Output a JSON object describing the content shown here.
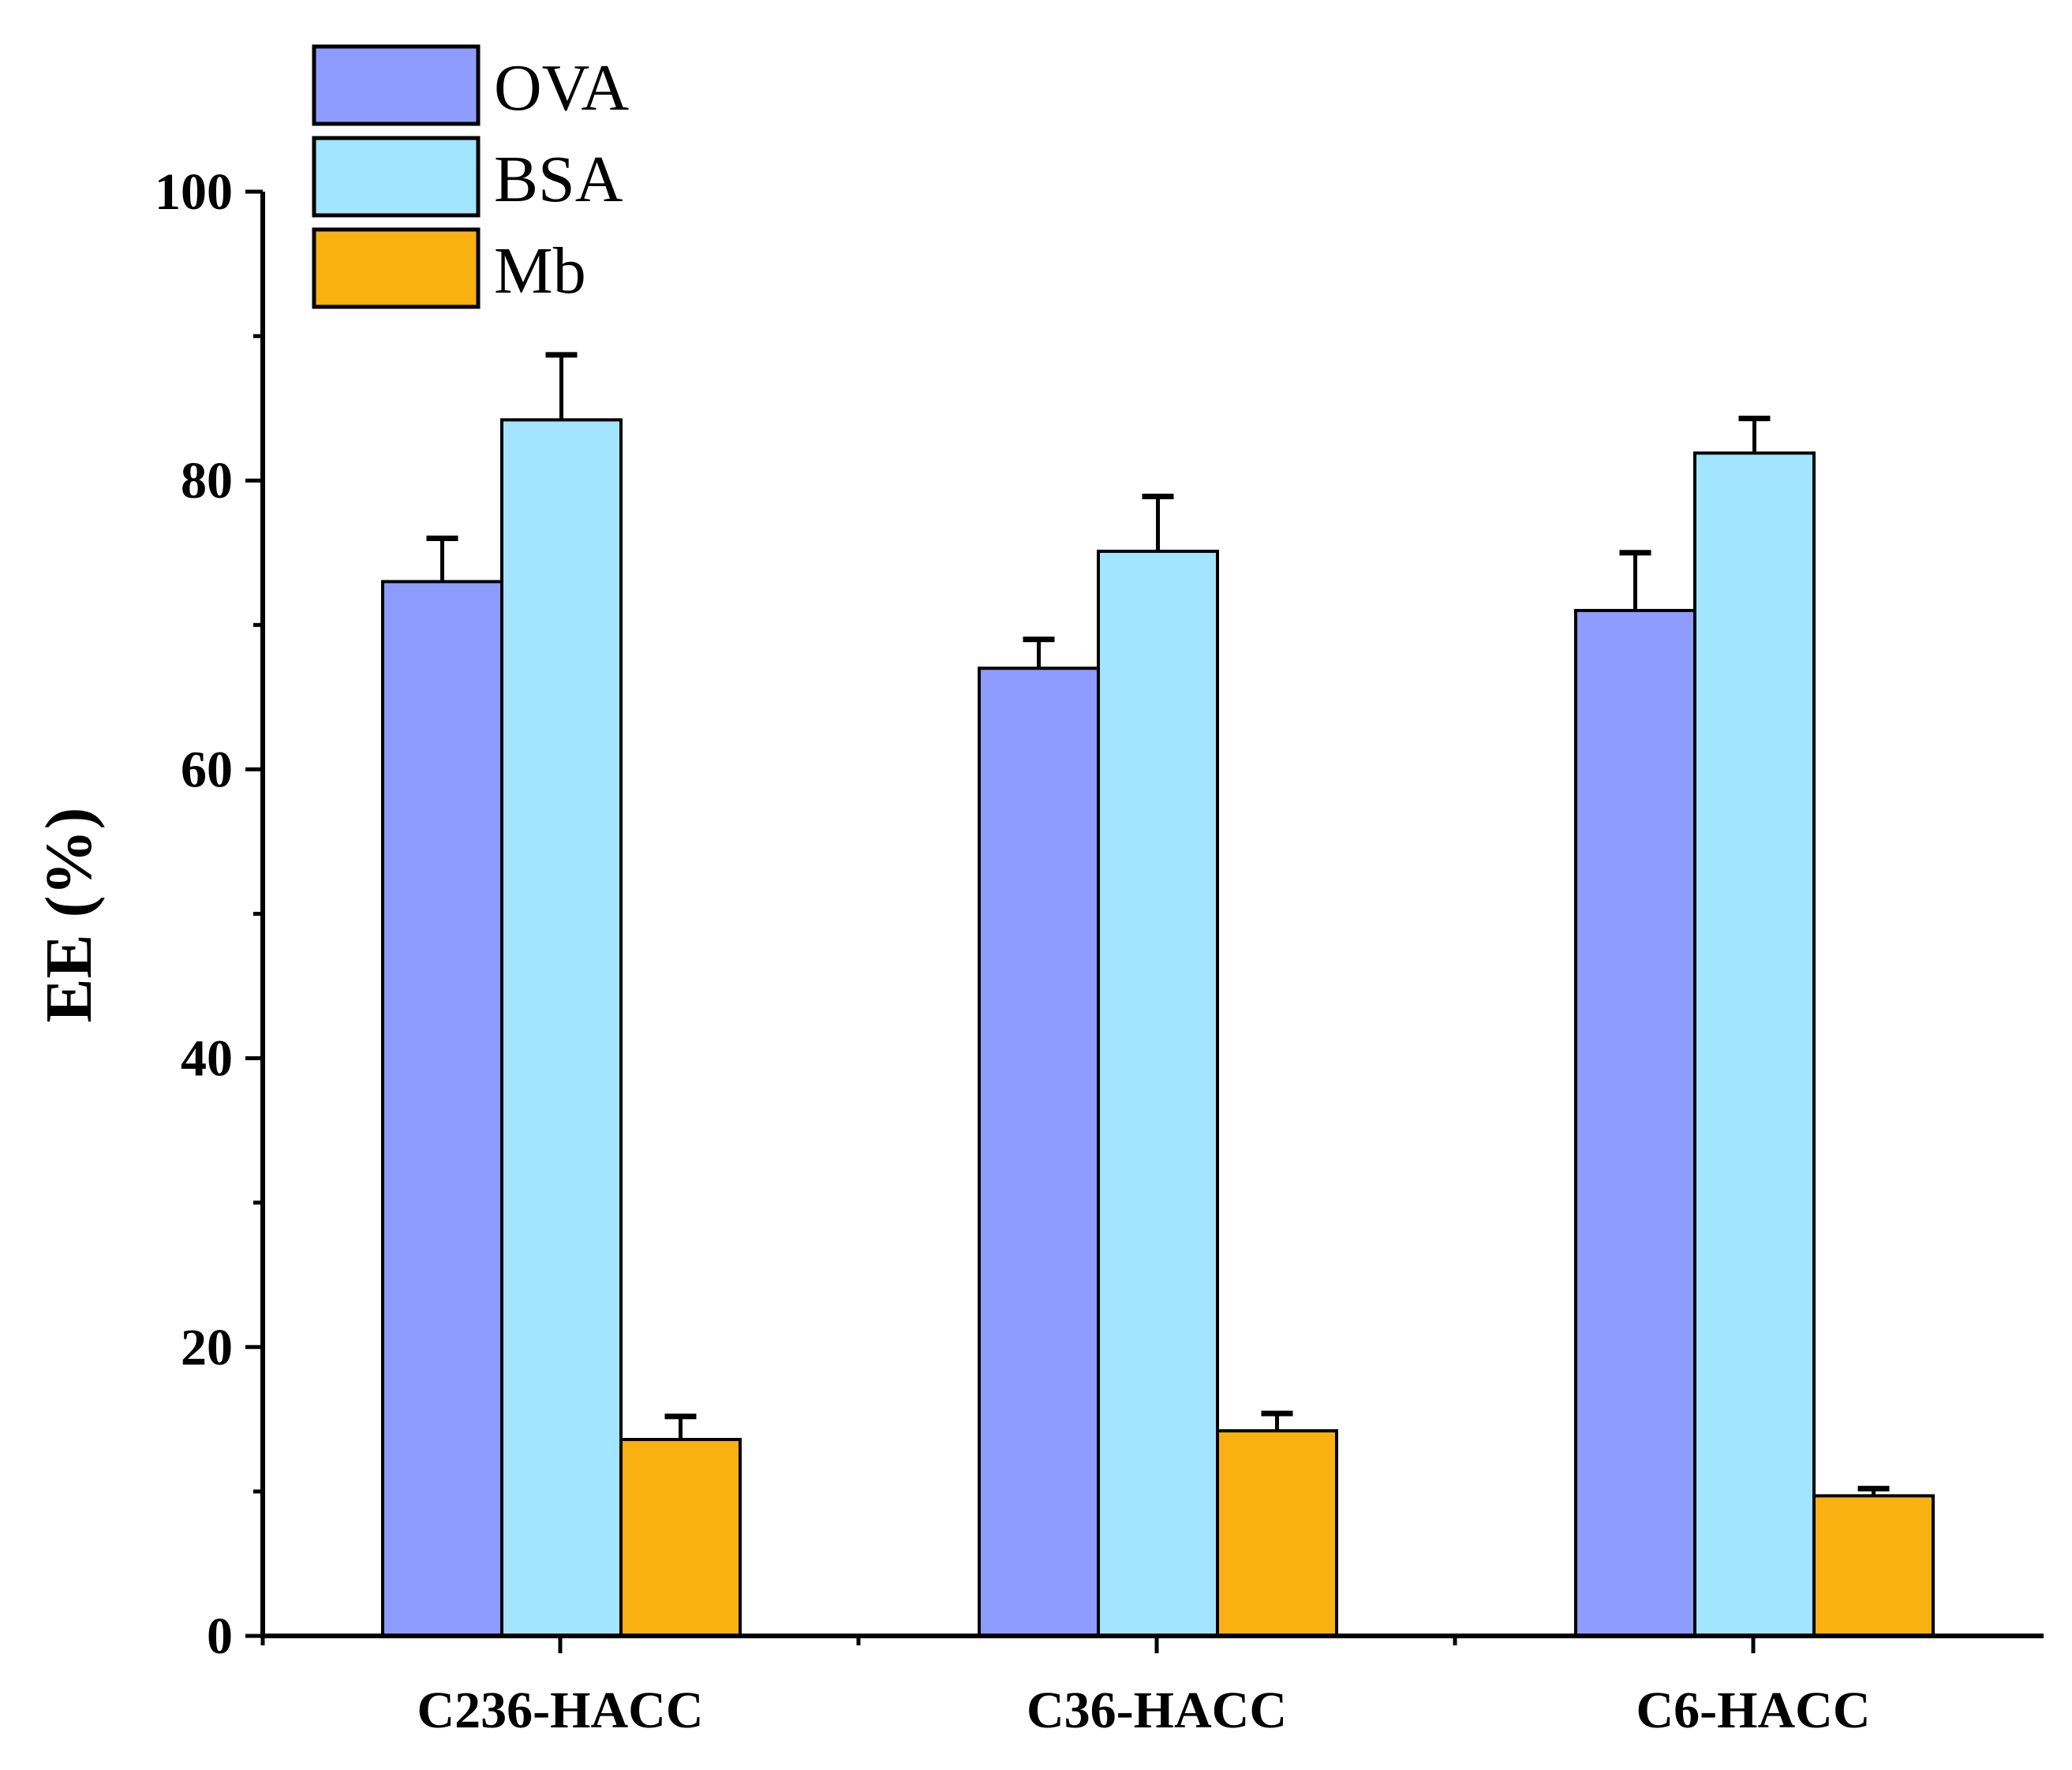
{
  "chart_data": {
    "type": "bar",
    "title": "",
    "xlabel": "",
    "ylabel": "EE (%)",
    "ylim": [
      0,
      100
    ],
    "yticks": [
      0,
      20,
      40,
      60,
      80,
      100
    ],
    "ytick_labels": [
      "0",
      "20",
      "40",
      "60",
      "80",
      "100"
    ],
    "categories": [
      "C236-HACC",
      "C36-HACC",
      "C6-HACC"
    ],
    "series": [
      {
        "name": "OVA",
        "color": "#8f9cff",
        "values": [
          73,
          67,
          71
        ],
        "errors": [
          3,
          2,
          4
        ]
      },
      {
        "name": "BSA",
        "color": "#a3e4ff",
        "values": [
          84.2,
          75.1,
          81.9
        ],
        "errors": [
          4.5,
          3.8,
          2.4
        ]
      },
      {
        "name": "Mb",
        "color": "#f9b112",
        "values": [
          13.6,
          14.2,
          9.7
        ],
        "errors": [
          1.6,
          1.2,
          0.5
        ]
      }
    ],
    "legend": {
      "placement": "top-left"
    },
    "grid": false,
    "error_bars": "upper"
  }
}
